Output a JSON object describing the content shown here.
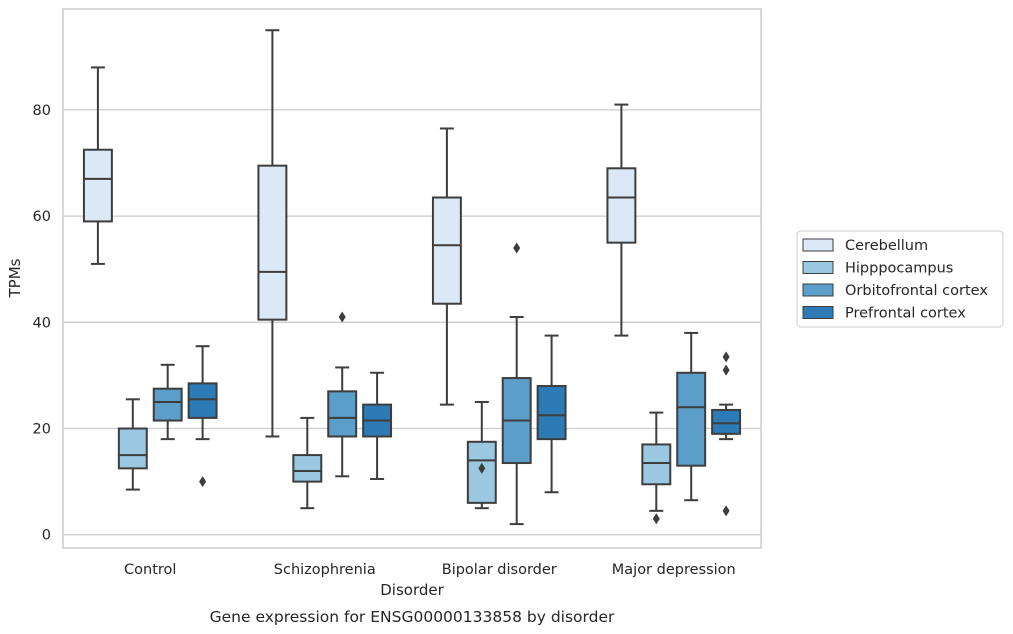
{
  "chart_data": {
    "type": "box",
    "caption": "Gene expression for ENSG00000133858 by disorder",
    "xlabel": "Disorder",
    "ylabel": "TPMs",
    "ylim": [
      -2.5,
      99
    ],
    "yticks": [
      0,
      20,
      40,
      60,
      80
    ],
    "grid": "y",
    "legend_position": "right",
    "categories": [
      "Control",
      "Schizophrenia",
      "Bipolar disorder",
      "Major depression"
    ],
    "series": [
      {
        "name": "Cerebellum",
        "color": "#dbe9f6",
        "boxes": [
          {
            "whislo": 51,
            "q1": 59,
            "med": 67,
            "q3": 72.5,
            "whishi": 88,
            "fliers": []
          },
          {
            "whislo": 18.5,
            "q1": 40.5,
            "med": 49.5,
            "q3": 69.5,
            "whishi": 95,
            "fliers": []
          },
          {
            "whislo": 24.5,
            "q1": 43.5,
            "med": 54.5,
            "q3": 63.5,
            "whishi": 76.5,
            "fliers": []
          },
          {
            "whislo": 37.5,
            "q1": 55,
            "med": 63.5,
            "q3": 69,
            "whishi": 81,
            "fliers": []
          }
        ]
      },
      {
        "name": "Hipppocampus",
        "color": "#9ac8e0",
        "boxes": [
          {
            "whislo": 8.5,
            "q1": 12.5,
            "med": 15,
            "q3": 20,
            "whishi": 25.5,
            "fliers": []
          },
          {
            "whislo": 5,
            "q1": 10,
            "med": 12,
            "q3": 15,
            "whishi": 22,
            "fliers": []
          },
          {
            "whislo": 5,
            "q1": 6,
            "med": 14,
            "q3": 17.5,
            "whishi": 25,
            "fliers": [
              12.5
            ]
          },
          {
            "whislo": 4.5,
            "q1": 9.5,
            "med": 13.5,
            "q3": 17,
            "whishi": 23,
            "fliers": [
              3
            ]
          }
        ]
      },
      {
        "name": "Orbitofrontal cortex",
        "color": "#5a9ec9",
        "boxes": [
          {
            "whislo": 18,
            "q1": 21.5,
            "med": 25,
            "q3": 27.5,
            "whishi": 32,
            "fliers": []
          },
          {
            "whislo": 11,
            "q1": 18.5,
            "med": 22,
            "q3": 27,
            "whishi": 31.5,
            "fliers": [
              41
            ]
          },
          {
            "whislo": 2,
            "q1": 13.5,
            "med": 21.5,
            "q3": 29.5,
            "whishi": 41,
            "fliers": [
              54
            ]
          },
          {
            "whislo": 6.5,
            "q1": 13,
            "med": 24,
            "q3": 30.5,
            "whishi": 38,
            "fliers": []
          }
        ]
      },
      {
        "name": "Prefrontal cortex",
        "color": "#2c7bb6",
        "boxes": [
          {
            "whislo": 18,
            "q1": 22,
            "med": 25.5,
            "q3": 28.5,
            "whishi": 35.5,
            "fliers": [
              10
            ]
          },
          {
            "whislo": 10.5,
            "q1": 18.5,
            "med": 21.5,
            "q3": 24.5,
            "whishi": 30.5,
            "fliers": []
          },
          {
            "whislo": 8,
            "q1": 18,
            "med": 22.5,
            "q3": 28,
            "whishi": 37.5,
            "fliers": []
          },
          {
            "whislo": 18,
            "q1": 19,
            "med": 21,
            "q3": 23.5,
            "whishi": 24.5,
            "fliers": [
              33.5,
              31,
              4.5
            ]
          }
        ]
      }
    ]
  }
}
